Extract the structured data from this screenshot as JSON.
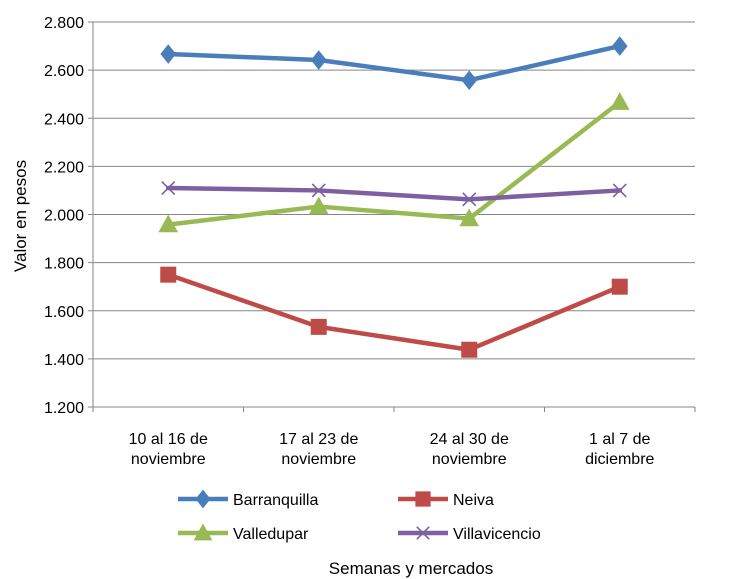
{
  "chart_data": {
    "type": "line",
    "title": "",
    "xlabel": "Semanas y mercados",
    "ylabel": "Valor en pesos",
    "ylim": [
      1200,
      2800
    ],
    "yticks": [
      {
        "value": 1200,
        "label": "1.200"
      },
      {
        "value": 1400,
        "label": "1.400"
      },
      {
        "value": 1600,
        "label": "1.600"
      },
      {
        "value": 1800,
        "label": "1.800"
      },
      {
        "value": 2000,
        "label": "2.000"
      },
      {
        "value": 2200,
        "label": "2.200"
      },
      {
        "value": 2400,
        "label": "2.400"
      },
      {
        "value": 2600,
        "label": "2.600"
      },
      {
        "value": 2800,
        "label": "2.800"
      }
    ],
    "grid": true,
    "legend_position": "bottom",
    "categories": [
      [
        "10 al 16 de",
        "noviembre"
      ],
      [
        "17 al 23 de",
        "noviembre"
      ],
      [
        "24 al 30 de",
        "noviembre"
      ],
      [
        "1 al 7 de",
        "diciembre"
      ]
    ],
    "series": [
      {
        "name": "Barranquilla",
        "color": "#4a7ebb",
        "marker": "diamond",
        "values": [
          2667,
          2642,
          2558,
          2700
        ]
      },
      {
        "name": "Neiva",
        "color": "#be4b48",
        "marker": "square",
        "values": [
          1750,
          1533,
          1438,
          1700
        ]
      },
      {
        "name": "Valledupar",
        "color": "#98b954",
        "marker": "triangle",
        "values": [
          1958,
          2033,
          1983,
          2467
        ]
      },
      {
        "name": "Villavicencio",
        "color": "#7d60a0",
        "marker": "x",
        "values": [
          2110,
          2100,
          2063,
          2100
        ]
      }
    ]
  }
}
